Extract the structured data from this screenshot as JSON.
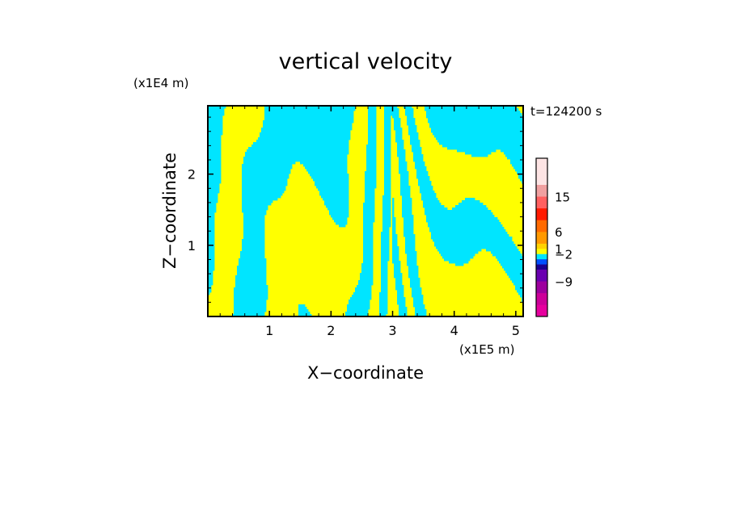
{
  "chart_data": {
    "type": "heatmap",
    "title": "vertical velocity",
    "xlabel": "X−coordinate",
    "ylabel": "Z−coordinate",
    "x_unit": "(x1E5 m)",
    "y_unit": "(x1E4 m)",
    "time_label": "t=124200 s",
    "xlim": [
      0,
      5.12
    ],
    "ylim": [
      0,
      2.96
    ],
    "x_ticks": [
      1,
      2,
      3,
      4,
      5
    ],
    "y_ticks": [
      1,
      2
    ],
    "field_colors": {
      "positive": "#ffff00",
      "negative": "#00e5ff"
    },
    "colorbar": {
      "colors": [
        "#e6009e",
        "#cc0099",
        "#9d009e",
        "#6a00b0",
        "#1a0090",
        "#0050ff",
        "#00e5ff",
        "#ffff00",
        "#ffd200",
        "#ff9900",
        "#ff6a00",
        "#ff1a00",
        "#ff6060",
        "#f0a0a0",
        "#fde4e4"
      ],
      "labels": [
        {
          "text": "−9",
          "value": -9
        },
        {
          "text": "−2",
          "value": -2
        },
        {
          "text": "1",
          "value": 1
        },
        {
          "text": "6",
          "value": 6
        },
        {
          "text": "15",
          "value": 15
        }
      ]
    }
  }
}
